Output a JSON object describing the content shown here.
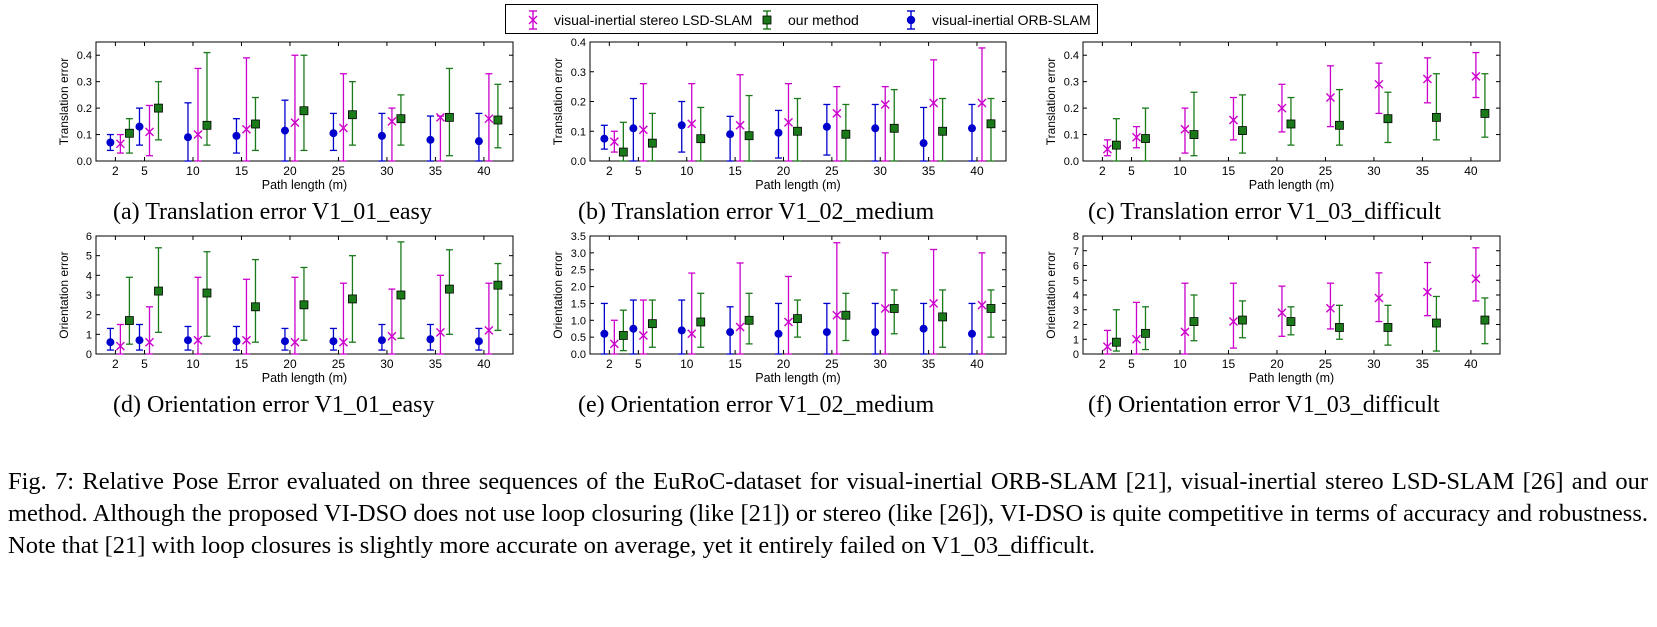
{
  "legend": {
    "items": [
      {
        "label": "visual-inertial stereo LSD-SLAM",
        "marker": "x",
        "color": "#cc00cc"
      },
      {
        "label": "our method",
        "marker": "square",
        "color": "#1a7a1a"
      },
      {
        "label": "visual-inertial ORB-SLAM",
        "marker": "circle",
        "color": "#0000cc"
      }
    ]
  },
  "captions": {
    "a": "(a) Translation error V1_01_easy",
    "b": "(b) Translation error V1_02_medium",
    "c": "(c) Translation error V1_03_difficult",
    "d": "(d) Orientation error V1_01_easy",
    "e": "(e) Orientation error V1_02_medium",
    "f": "(f) Orientation error V1_03_difficult"
  },
  "figure_caption": "Fig. 7: Relative Pose Error evaluated on three sequences of the EuRoC-dataset for visual-inertial ORB-SLAM [21], visual-inertial stereo LSD-SLAM [26] and our method. Although the proposed VI-DSO does not use loop closuring (like [21]) or stereo (like [26]), VI-DSO is quite competitive in terms of accuracy and robustness. Note that [21] with loop closures is slightly more accurate on average, yet it entirely failed on V1_03_difficult.",
  "colors": {
    "lsd": "#cc00cc",
    "ours": "#1a7a1a",
    "orb": "#0000cc"
  },
  "chart_data": [
    {
      "type": "scatter",
      "xlabel": "Path length (m)",
      "ylabel": "Translation error",
      "ylim": [
        0,
        0.45
      ],
      "yticks": [
        0.0,
        0.1,
        0.2,
        0.3,
        0.4
      ],
      "ytick_labels": [
        "0.0",
        "0.1",
        "0.2",
        "0.3",
        "0.4"
      ],
      "xticks": [
        2,
        5,
        10,
        15,
        20,
        25,
        30,
        35,
        40
      ],
      "series": [
        {
          "name": "visual-inertial ORB-SLAM",
          "marker": "circle",
          "x": [
            2,
            5,
            10,
            15,
            20,
            25,
            30,
            35,
            40
          ],
          "values": [
            0.07,
            0.13,
            0.09,
            0.095,
            0.115,
            0.105,
            0.095,
            0.08,
            0.075
          ],
          "low": [
            0.04,
            0.06,
            0.0,
            0.03,
            0.0,
            0.04,
            0.0,
            0.0,
            0.0
          ],
          "high": [
            0.1,
            0.2,
            0.22,
            0.16,
            0.23,
            0.18,
            0.18,
            0.17,
            0.18
          ]
        },
        {
          "name": "visual-inertial stereo LSD-SLAM",
          "marker": "x",
          "x": [
            2,
            5,
            10,
            15,
            20,
            25,
            30,
            35,
            40
          ],
          "values": [
            0.065,
            0.11,
            0.1,
            0.12,
            0.145,
            0.125,
            0.15,
            0.165,
            0.16
          ],
          "low": [
            0.03,
            0.02,
            0.0,
            0.0,
            0.0,
            0.0,
            0.0,
            0.0,
            0.0
          ],
          "high": [
            0.1,
            0.21,
            0.35,
            0.39,
            0.4,
            0.33,
            0.2,
            0.17,
            0.33
          ]
        },
        {
          "name": "our method",
          "marker": "square",
          "x": [
            2,
            5,
            10,
            15,
            20,
            25,
            30,
            35,
            40
          ],
          "values": [
            0.105,
            0.2,
            0.135,
            0.14,
            0.19,
            0.175,
            0.16,
            0.165,
            0.155
          ],
          "low": [
            0.03,
            0.08,
            0.06,
            0.04,
            0.04,
            0.06,
            0.06,
            0.02,
            0.05
          ],
          "high": [
            0.16,
            0.3,
            0.41,
            0.24,
            0.4,
            0.3,
            0.25,
            0.35,
            0.29
          ]
        }
      ]
    },
    {
      "type": "scatter",
      "xlabel": "Path length (m)",
      "ylabel": "Translation error",
      "ylim": [
        0,
        0.4
      ],
      "yticks": [
        0.0,
        0.1,
        0.2,
        0.3,
        0.4
      ],
      "ytick_labels": [
        "0.0",
        "0.1",
        "0.2",
        "0.3",
        "0.4"
      ],
      "xticks": [
        2,
        5,
        10,
        15,
        20,
        25,
        30,
        35,
        40
      ],
      "series": [
        {
          "name": "visual-inertial ORB-SLAM",
          "marker": "circle",
          "x": [
            2,
            5,
            10,
            15,
            20,
            25,
            30,
            35,
            40
          ],
          "values": [
            0.075,
            0.11,
            0.12,
            0.09,
            0.095,
            0.115,
            0.11,
            0.06,
            0.11
          ],
          "low": [
            0.04,
            0.0,
            0.03,
            0.0,
            0.01,
            0.02,
            0.0,
            0.0,
            0.0
          ],
          "high": [
            0.12,
            0.21,
            0.2,
            0.15,
            0.17,
            0.19,
            0.19,
            0.18,
            0.19
          ]
        },
        {
          "name": "visual-inertial stereo LSD-SLAM",
          "marker": "x",
          "x": [
            2,
            5,
            10,
            15,
            20,
            25,
            30,
            35,
            40
          ],
          "values": [
            0.065,
            0.105,
            0.125,
            0.12,
            0.13,
            0.16,
            0.19,
            0.195,
            0.195
          ],
          "low": [
            0.03,
            0.0,
            0.0,
            0.0,
            0.0,
            0.0,
            0.0,
            0.0,
            0.0
          ],
          "high": [
            0.1,
            0.26,
            0.26,
            0.29,
            0.26,
            0.25,
            0.25,
            0.34,
            0.38
          ]
        },
        {
          "name": "our method",
          "marker": "square",
          "x": [
            2,
            5,
            10,
            15,
            20,
            25,
            30,
            35,
            40
          ],
          "values": [
            0.03,
            0.06,
            0.075,
            0.085,
            0.1,
            0.09,
            0.11,
            0.1,
            0.125
          ],
          "low": [
            0.0,
            0.0,
            0.0,
            0.0,
            0.0,
            0.0,
            0.0,
            0.0,
            0.0
          ],
          "high": [
            0.13,
            0.16,
            0.18,
            0.22,
            0.21,
            0.19,
            0.24,
            0.21,
            0.21
          ]
        }
      ]
    },
    {
      "type": "scatter",
      "xlabel": "Path length (m)",
      "ylabel": "Translation error",
      "ylim": [
        0,
        0.45
      ],
      "yticks": [
        0.0,
        0.1,
        0.2,
        0.3,
        0.4
      ],
      "ytick_labels": [
        "0.0",
        "0.1",
        "0.2",
        "0.3",
        "0.4"
      ],
      "xticks": [
        2,
        5,
        10,
        15,
        20,
        25,
        30,
        35,
        40
      ],
      "series": [
        {
          "name": "visual-inertial stereo LSD-SLAM",
          "marker": "x",
          "x": [
            2,
            5,
            10,
            15,
            20,
            25,
            30,
            35,
            40
          ],
          "values": [
            0.045,
            0.09,
            0.12,
            0.155,
            0.2,
            0.24,
            0.29,
            0.31,
            0.32
          ],
          "low": [
            0.02,
            0.05,
            0.03,
            0.08,
            0.11,
            0.13,
            0.18,
            0.22,
            0.24
          ],
          "high": [
            0.08,
            0.13,
            0.2,
            0.24,
            0.29,
            0.36,
            0.37,
            0.39,
            0.41
          ]
        },
        {
          "name": "our method",
          "marker": "square",
          "x": [
            2,
            5,
            10,
            15,
            20,
            25,
            30,
            35,
            40
          ],
          "values": [
            0.06,
            0.085,
            0.1,
            0.115,
            0.14,
            0.135,
            0.16,
            0.165,
            0.18
          ],
          "low": [
            0.0,
            0.0,
            0.02,
            0.03,
            0.06,
            0.06,
            0.07,
            0.08,
            0.09
          ],
          "high": [
            0.16,
            0.2,
            0.26,
            0.25,
            0.24,
            0.27,
            0.26,
            0.33,
            0.33
          ]
        }
      ]
    },
    {
      "type": "scatter",
      "xlabel": "Path length (m)",
      "ylabel": "Orientation error",
      "ylim": [
        0,
        6
      ],
      "yticks": [
        0,
        1,
        2,
        3,
        4,
        5,
        6
      ],
      "ytick_labels": [
        "0",
        "1",
        "2",
        "3",
        "4",
        "5",
        "6"
      ],
      "xticks": [
        2,
        5,
        10,
        15,
        20,
        25,
        30,
        35,
        40
      ],
      "series": [
        {
          "name": "visual-inertial ORB-SLAM",
          "marker": "circle",
          "x": [
            2,
            5,
            10,
            15,
            20,
            25,
            30,
            35,
            40
          ],
          "values": [
            0.6,
            0.7,
            0.7,
            0.65,
            0.65,
            0.65,
            0.7,
            0.75,
            0.65
          ],
          "low": [
            0.2,
            0.2,
            0.2,
            0.2,
            0.2,
            0.2,
            0.2,
            0.2,
            0.2
          ],
          "high": [
            1.3,
            1.5,
            1.4,
            1.4,
            1.3,
            1.3,
            1.5,
            1.5,
            1.3
          ]
        },
        {
          "name": "visual-inertial stereo LSD-SLAM",
          "marker": "x",
          "x": [
            2,
            5,
            10,
            15,
            20,
            25,
            30,
            35,
            40
          ],
          "values": [
            0.4,
            0.6,
            0.7,
            0.7,
            0.6,
            0.6,
            0.9,
            1.1,
            1.2
          ],
          "low": [
            0.0,
            0.0,
            0.0,
            0.0,
            0.0,
            0.0,
            0.0,
            0.0,
            0.0
          ],
          "high": [
            1.5,
            2.4,
            3.9,
            3.8,
            3.9,
            3.6,
            3.3,
            4.0,
            3.6
          ]
        },
        {
          "name": "our method",
          "marker": "square",
          "x": [
            2,
            5,
            10,
            15,
            20,
            25,
            30,
            35,
            40
          ],
          "values": [
            1.7,
            3.2,
            3.1,
            2.4,
            2.5,
            2.8,
            3.0,
            3.3,
            3.5
          ],
          "low": [
            0.5,
            1.1,
            0.9,
            0.6,
            0.7,
            0.6,
            0.8,
            1.0,
            1.2
          ],
          "high": [
            3.9,
            5.4,
            5.2,
            4.8,
            4.4,
            5.0,
            5.7,
            5.3,
            4.6
          ]
        }
      ]
    },
    {
      "type": "scatter",
      "xlabel": "Path length (m)",
      "ylabel": "Orientation error",
      "ylim": [
        0,
        3.5
      ],
      "yticks": [
        0.0,
        0.5,
        1.0,
        1.5,
        2.0,
        2.5,
        3.0,
        3.5
      ],
      "ytick_labels": [
        "0.0",
        "0.5",
        "1.0",
        "1.5",
        "2.0",
        "2.5",
        "3.0",
        "3.5"
      ],
      "xticks": [
        2,
        5,
        10,
        15,
        20,
        25,
        30,
        35,
        40
      ],
      "series": [
        {
          "name": "visual-inertial ORB-SLAM",
          "marker": "circle",
          "x": [
            2,
            5,
            10,
            15,
            20,
            25,
            30,
            35,
            40
          ],
          "values": [
            0.6,
            0.75,
            0.7,
            0.65,
            0.6,
            0.65,
            0.65,
            0.75,
            0.6
          ],
          "low": [
            0.0,
            0.0,
            0.0,
            0.0,
            0.0,
            0.0,
            0.0,
            0.0,
            0.0
          ],
          "high": [
            1.5,
            1.6,
            1.6,
            1.4,
            1.5,
            1.5,
            1.5,
            1.5,
            1.5
          ]
        },
        {
          "name": "visual-inertial stereo LSD-SLAM",
          "marker": "x",
          "x": [
            2,
            5,
            10,
            15,
            20,
            25,
            30,
            35,
            40
          ],
          "values": [
            0.3,
            0.55,
            0.6,
            0.8,
            0.95,
            1.15,
            1.35,
            1.5,
            1.45
          ],
          "low": [
            0.0,
            0.0,
            0.0,
            0.0,
            0.0,
            0.0,
            0.0,
            0.0,
            0.0
          ],
          "high": [
            1.0,
            1.6,
            2.4,
            2.7,
            2.3,
            3.3,
            3.0,
            3.1,
            3.0
          ]
        },
        {
          "name": "our method",
          "marker": "square",
          "x": [
            2,
            5,
            10,
            15,
            20,
            25,
            30,
            35,
            40
          ],
          "values": [
            0.55,
            0.9,
            0.95,
            1.0,
            1.05,
            1.15,
            1.35,
            1.1,
            1.35
          ],
          "low": [
            0.1,
            0.2,
            0.2,
            0.3,
            0.5,
            0.4,
            0.6,
            0.2,
            0.5
          ],
          "high": [
            1.3,
            1.6,
            1.8,
            1.8,
            1.6,
            1.8,
            1.9,
            1.9,
            1.9
          ]
        }
      ]
    },
    {
      "type": "scatter",
      "xlabel": "Path length (m)",
      "ylabel": "Orientation error",
      "ylim": [
        0,
        8
      ],
      "yticks": [
        0,
        1,
        2,
        3,
        4,
        5,
        6,
        7,
        8
      ],
      "ytick_labels": [
        "0",
        "1",
        "2",
        "3",
        "4",
        "5",
        "6",
        "7",
        "8"
      ],
      "xticks": [
        2,
        5,
        10,
        15,
        20,
        25,
        30,
        35,
        40
      ],
      "series": [
        {
          "name": "visual-inertial stereo LSD-SLAM",
          "marker": "x",
          "x": [
            2,
            5,
            10,
            15,
            20,
            25,
            30,
            35,
            40
          ],
          "values": [
            0.5,
            1.0,
            1.5,
            2.2,
            2.8,
            3.1,
            3.8,
            4.2,
            5.1
          ],
          "low": [
            0.0,
            0.0,
            0.0,
            0.4,
            1.2,
            1.7,
            2.2,
            2.6,
            3.6
          ],
          "high": [
            1.6,
            3.5,
            4.8,
            4.8,
            4.6,
            4.8,
            5.5,
            6.2,
            7.2
          ]
        },
        {
          "name": "our method",
          "marker": "square",
          "x": [
            2,
            5,
            10,
            15,
            20,
            25,
            30,
            35,
            40
          ],
          "values": [
            0.8,
            1.4,
            2.2,
            2.3,
            2.2,
            1.8,
            1.8,
            2.1,
            2.3
          ],
          "low": [
            0.2,
            0.3,
            0.9,
            1.1,
            1.3,
            1.0,
            0.6,
            0.2,
            0.7
          ],
          "high": [
            3.0,
            3.2,
            4.0,
            3.6,
            3.2,
            3.3,
            3.3,
            3.9,
            3.8
          ]
        }
      ]
    }
  ]
}
